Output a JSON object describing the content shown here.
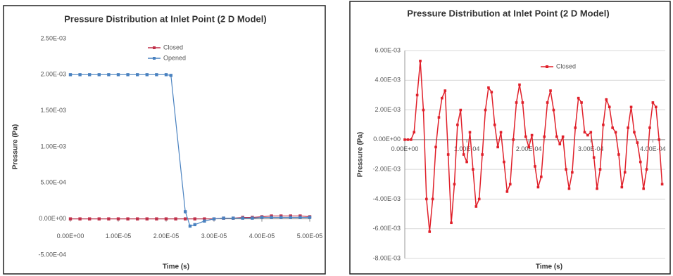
{
  "chart_data": [
    {
      "type": "line",
      "title": "Pressure Distribution at Inlet Point (2 D Model)",
      "x_label": "Time (s)",
      "y_label": "Pressure (Pa)",
      "xlim": [
        0,
        5e-05
      ],
      "ylim": [
        -0.0005,
        0.0025
      ],
      "grid": false,
      "xticks": [
        {
          "value": 0,
          "label": "0.00E+00"
        },
        {
          "value": 1e-05,
          "label": "1.00E-05"
        },
        {
          "value": 2e-05,
          "label": "2.00E-05"
        },
        {
          "value": 3e-05,
          "label": "3.00E-05"
        },
        {
          "value": 4e-05,
          "label": "4.00E-05"
        },
        {
          "value": 5e-05,
          "label": "5.00E-05"
        }
      ],
      "yticks": [
        {
          "value": 0.0025,
          "label": "2.50E-03"
        },
        {
          "value": 0.002,
          "label": "2.00E-03"
        },
        {
          "value": 0.0015,
          "label": "1.50E-03"
        },
        {
          "value": 0.001,
          "label": "1.00E-03"
        },
        {
          "value": 0.0005,
          "label": "5.00E-04"
        },
        {
          "value": 0,
          "label": "0.00E+00"
        },
        {
          "value": -0.0005,
          "label": "-5.00E-04"
        }
      ],
      "series": [
        {
          "name": "Closed",
          "color": "#c0304a",
          "x": [
            0,
            2e-06,
            4e-06,
            6e-06,
            8e-06,
            1e-05,
            1.2e-05,
            1.4e-05,
            1.6e-05,
            1.8e-05,
            2e-05,
            2.2e-05,
            2.4e-05,
            2.6e-05,
            2.8e-05,
            3e-05,
            3.2e-05,
            3.4e-05,
            3.6e-05,
            3.8e-05,
            4e-05,
            4.2e-05,
            4.4e-05,
            4.6e-05,
            4.8e-05,
            5e-05
          ],
          "values": [
            0,
            0,
            0,
            0,
            0,
            0,
            0,
            0,
            0,
            0,
            0,
            0,
            0,
            0,
            0,
            0,
            1e-05,
            1e-05,
            2e-05,
            2e-05,
            3e-05,
            4e-05,
            4e-05,
            4e-05,
            4e-05,
            3e-05
          ]
        },
        {
          "name": "Opened",
          "color": "#4a82c0",
          "x": [
            0,
            2e-06,
            4e-06,
            6e-06,
            8e-06,
            1e-05,
            1.2e-05,
            1.4e-05,
            1.6e-05,
            1.8e-05,
            2e-05,
            2.1e-05,
            2.4e-05,
            2.5e-05,
            2.6e-05,
            2.8e-05,
            3e-05,
            3.2e-05,
            3.4e-05,
            3.6e-05,
            3.8e-05,
            4e-05,
            4.2e-05,
            4.4e-05,
            4.6e-05,
            4.8e-05,
            5e-05
          ],
          "values": [
            0.002,
            0.002,
            0.002,
            0.002,
            0.002,
            0.002,
            0.002,
            0.002,
            0.002,
            0.002,
            0.002,
            0.00199,
            0.0001,
            -0.0001,
            -8e-05,
            -3e-05,
            0,
            1e-05,
            1e-05,
            1e-05,
            1e-05,
            2e-05,
            2e-05,
            2e-05,
            2e-05,
            2e-05,
            2e-05
          ]
        }
      ]
    },
    {
      "type": "line",
      "title": "Pressure Distribution at Inlet Point (2 D Model)",
      "x_label": "Time (s)",
      "y_label": "Pressure (Pa)",
      "xlim": [
        0,
        0.00042
      ],
      "ylim": [
        -0.008,
        0.006
      ],
      "grid": true,
      "xticks": [
        {
          "value": 0,
          "label": "0.00E+00"
        },
        {
          "value": 0.0001,
          "label": "1.00E-04"
        },
        {
          "value": 0.0002,
          "label": "2.00E-04"
        },
        {
          "value": 0.0003,
          "label": "3.00E-04"
        },
        {
          "value": 0.0004,
          "label": "4.00E-04"
        }
      ],
      "yticks": [
        {
          "value": 0.006,
          "label": "6.00E-03"
        },
        {
          "value": 0.004,
          "label": "4.00E-03"
        },
        {
          "value": 0.002,
          "label": "2.00E-03"
        },
        {
          "value": 0,
          "label": "0.00E+00"
        },
        {
          "value": -0.002,
          "label": "-2.00E-03"
        },
        {
          "value": -0.004,
          "label": "-4.00E-03"
        },
        {
          "value": -0.006,
          "label": "-6.00E-03"
        },
        {
          "value": -0.008,
          "label": "-8.00E-03"
        }
      ],
      "series": [
        {
          "name": "Closed",
          "color": "#e0202a",
          "x": [
            0,
            5e-06,
            1e-05,
            1.5e-05,
            2e-05,
            2.5e-05,
            3e-05,
            3.5e-05,
            4e-05,
            4.5e-05,
            5e-05,
            5.5e-05,
            6e-05,
            6.5e-05,
            7e-05,
            7.5e-05,
            8e-05,
            8.5e-05,
            9e-05,
            9.5e-05,
            0.0001,
            0.000105,
            0.00011,
            0.000115,
            0.00012,
            0.000125,
            0.00013,
            0.000135,
            0.00014,
            0.000145,
            0.00015,
            0.000155,
            0.00016,
            0.000165,
            0.00017,
            0.000175,
            0.00018,
            0.000185,
            0.00019,
            0.000195,
            0.0002,
            0.000205,
            0.00021,
            0.000215,
            0.00022,
            0.000225,
            0.00023,
            0.000235,
            0.00024,
            0.000245,
            0.00025,
            0.000255,
            0.00026,
            0.000265,
            0.00027,
            0.000275,
            0.00028,
            0.000285,
            0.00029,
            0.000295,
            0.0003,
            0.000305,
            0.00031,
            0.000315,
            0.00032,
            0.000325,
            0.00033,
            0.000335,
            0.00034,
            0.000345,
            0.00035,
            0.000355,
            0.00036,
            0.000365,
            0.00037,
            0.000375,
            0.00038,
            0.000385,
            0.00039,
            0.000395,
            0.0004,
            0.000405,
            0.00041,
            0.000415
          ],
          "values": [
            0,
            0,
            0,
            0.0005,
            0.003,
            0.0053,
            0.002,
            -0.004,
            -0.0062,
            -0.004,
            -0.0005,
            0.0015,
            0.0028,
            0.0033,
            -0.001,
            -0.0056,
            -0.003,
            0.001,
            0.002,
            -0.001,
            -0.0015,
            0.0005,
            -0.002,
            -0.0045,
            -0.004,
            -0.001,
            0.002,
            0.0035,
            0.0032,
            0.001,
            -0.0005,
            0.0005,
            -0.0015,
            -0.0035,
            -0.003,
            0,
            0.0025,
            0.0037,
            0.0025,
            0.0002,
            -0.0005,
            0.0003,
            -0.0018,
            -0.0032,
            -0.0025,
            0.0002,
            0.0025,
            0.0033,
            0.002,
            0.0002,
            -0.0003,
            0.0002,
            -0.002,
            -0.0033,
            -0.0022,
            0.0008,
            0.0028,
            0.0025,
            0.0005,
            0.0003,
            0.0005,
            -0.0012,
            -0.0033,
            -0.002,
            0.001,
            0.0027,
            0.0022,
            0.0008,
            0.0005,
            -0.001,
            -0.0032,
            -0.0022,
            0.0008,
            0.0022,
            0.0005,
            -0.0002,
            -0.0015,
            -0.0033,
            -0.002,
            0.0008,
            0.0025,
            0.0022,
            0,
            -0.003
          ]
        }
      ]
    }
  ]
}
